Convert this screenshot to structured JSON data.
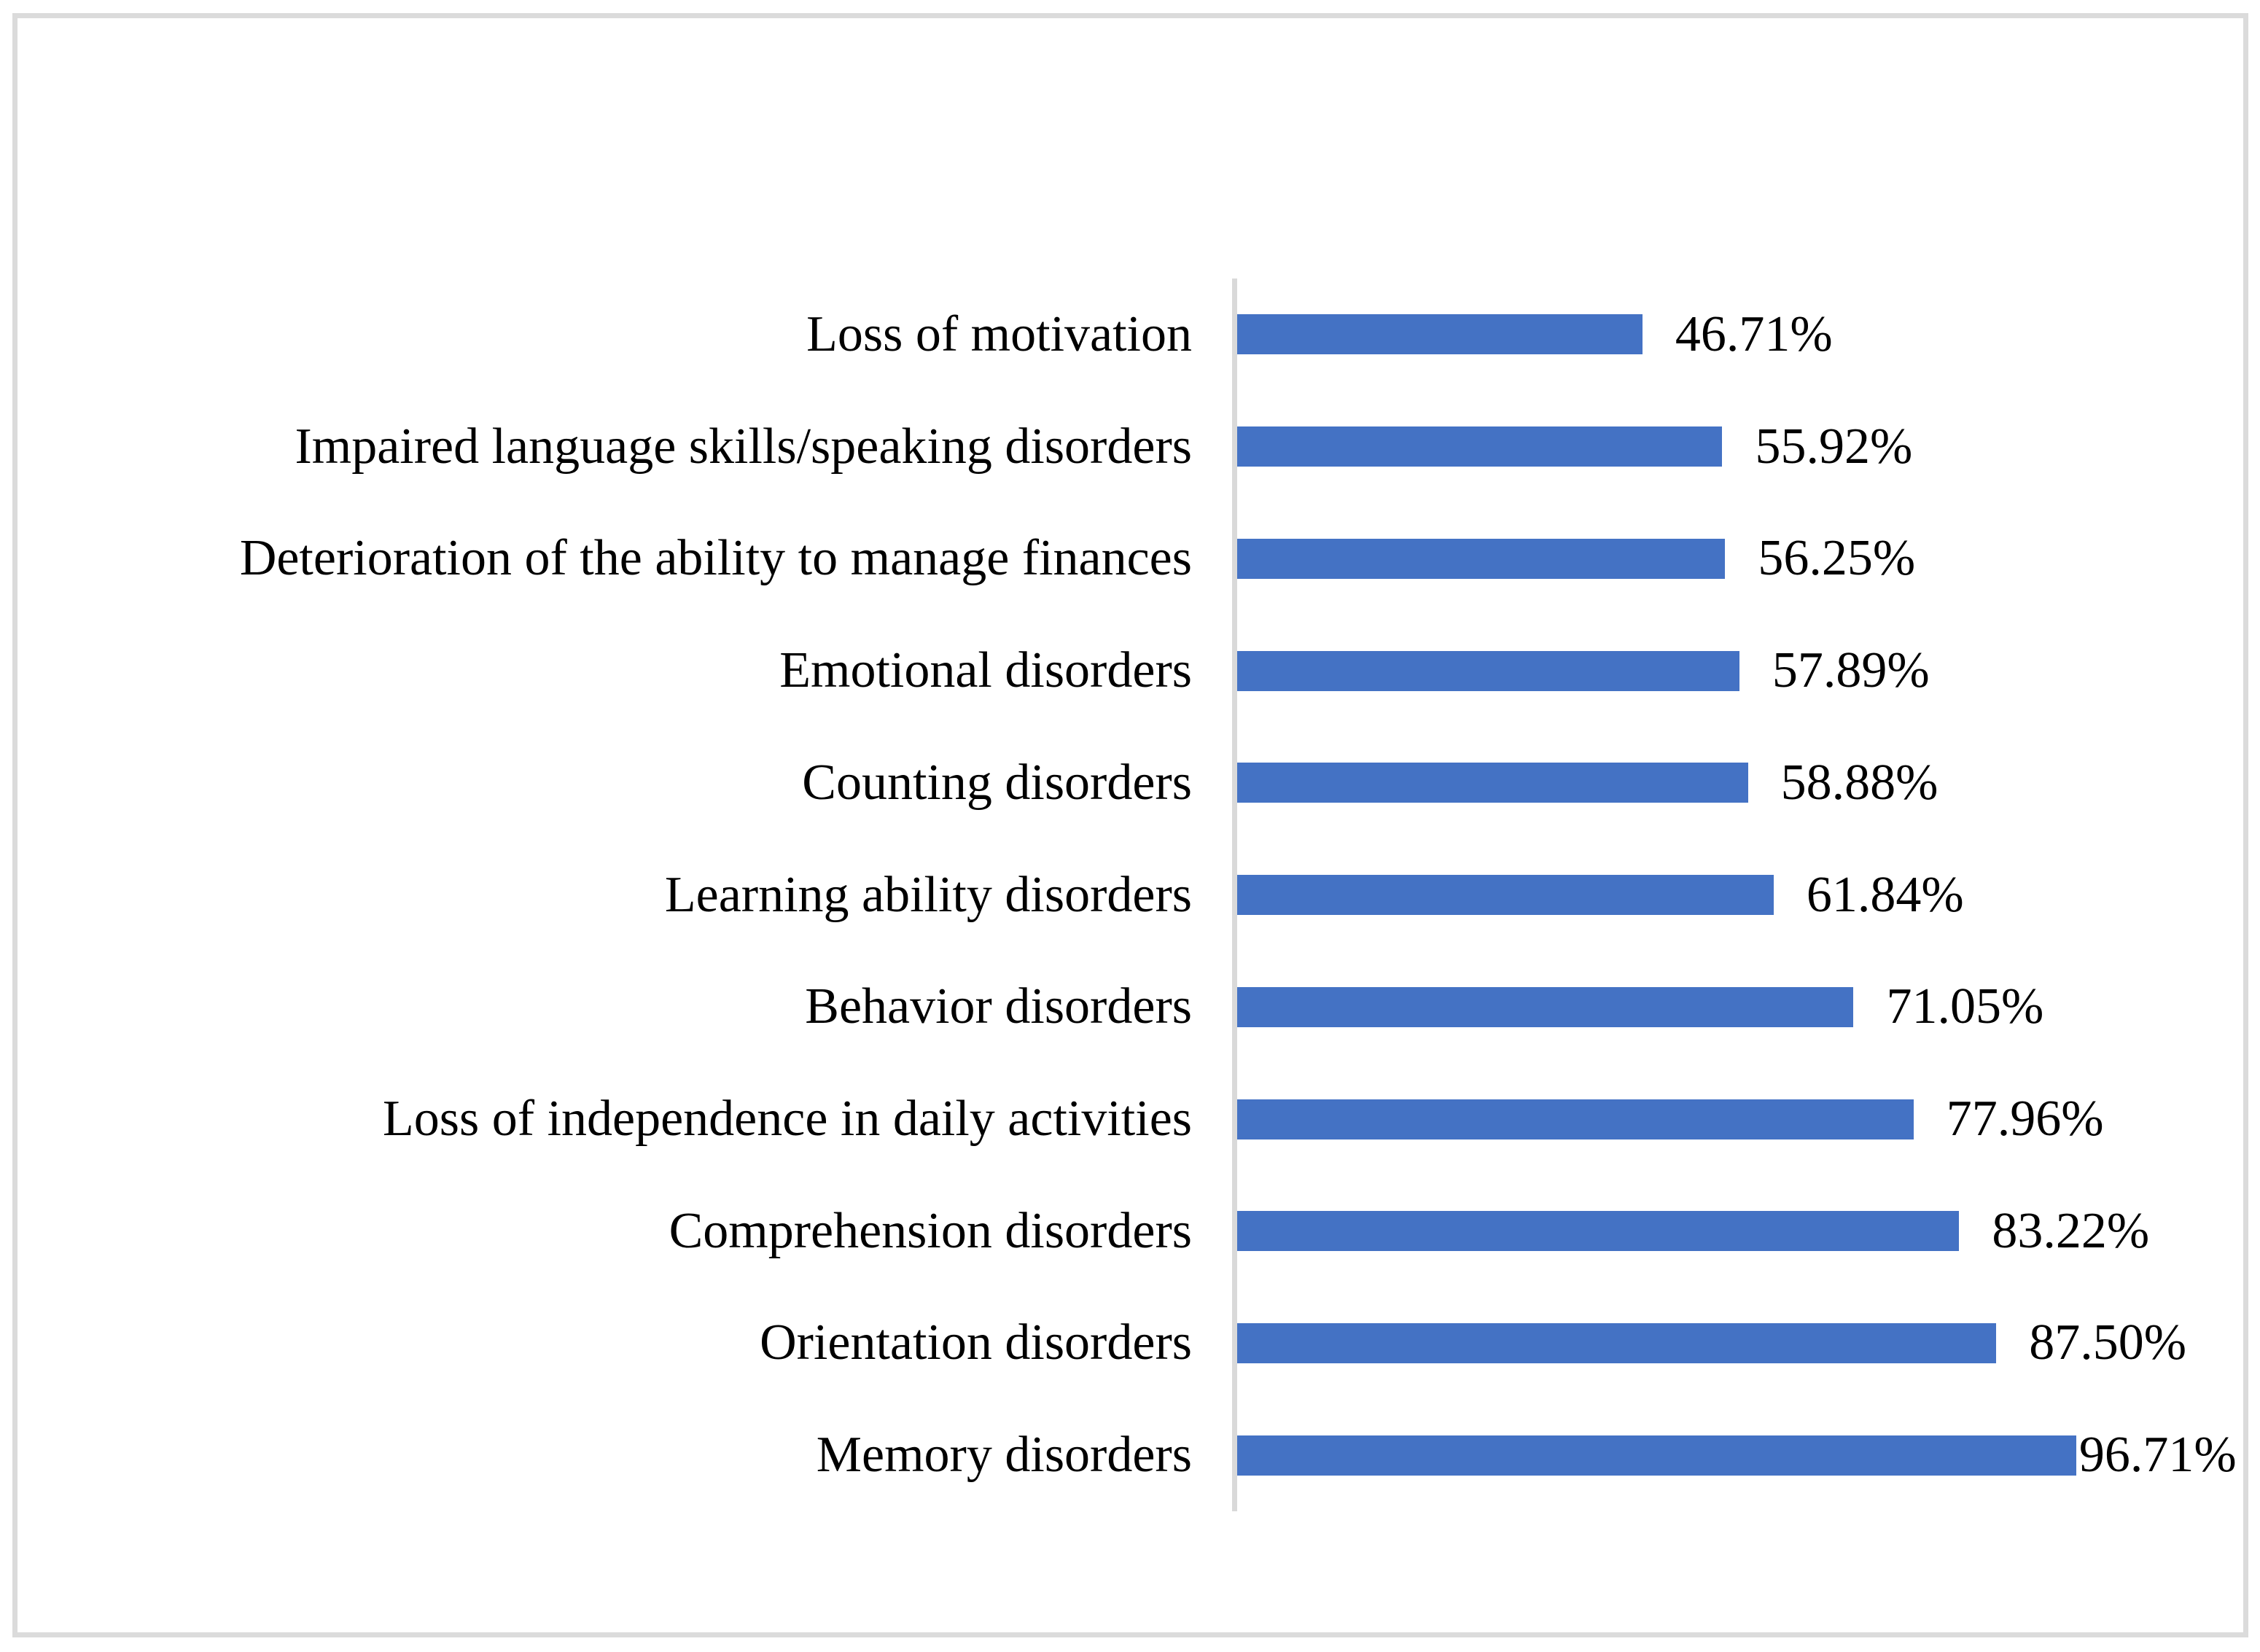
{
  "chart_data": {
    "type": "bar",
    "orientation": "horizontal",
    "title": "",
    "xlabel": "",
    "ylabel": "",
    "xlim": [
      0,
      100
    ],
    "gridlines": "off",
    "legend": "none",
    "data_label_position": "outside-end",
    "bar_color": "#4472c4",
    "axis_line_color": "#d9d9d9",
    "frame_border_color": "#dbdbdb",
    "text_color": "#000000",
    "categories": [
      "Loss of motivation",
      "Impaired language skills/speaking disorders",
      "Deterioration of the ability to manage finances",
      "Emotional disorders",
      "Counting disorders",
      "Learning ability disorders",
      "Behavior disorders",
      "Loss of independence in daily activities",
      "Comprehension disorders",
      "Orientation disorders",
      "Memory disorders"
    ],
    "values": [
      46.71,
      55.92,
      56.25,
      57.89,
      58.88,
      61.84,
      71.05,
      77.96,
      83.22,
      87.5,
      96.71
    ],
    "series": [
      {
        "category": "Loss of motivation",
        "value": 46.71,
        "display": "46.71%"
      },
      {
        "category": "Impaired language skills/speaking disorders",
        "value": 55.92,
        "display": "55.92%"
      },
      {
        "category": "Deterioration of the ability to manage finances",
        "value": 56.25,
        "display": "56.25%"
      },
      {
        "category": "Emotional disorders",
        "value": 57.89,
        "display": "57.89%"
      },
      {
        "category": "Counting disorders",
        "value": 58.88,
        "display": "58.88%"
      },
      {
        "category": "Learning ability disorders",
        "value": 61.84,
        "display": "61.84%"
      },
      {
        "category": "Behavior disorders",
        "value": 71.05,
        "display": "71.05%"
      },
      {
        "category": "Loss of independence in daily activities",
        "value": 77.96,
        "display": "77.96%"
      },
      {
        "category": "Comprehension disorders",
        "value": 83.22,
        "display": "83.22%"
      },
      {
        "category": "Orientation disorders",
        "value": 87.5,
        "display": "87.50%"
      },
      {
        "category": "Memory disorders",
        "value": 96.71,
        "display": "96.71%"
      }
    ]
  }
}
